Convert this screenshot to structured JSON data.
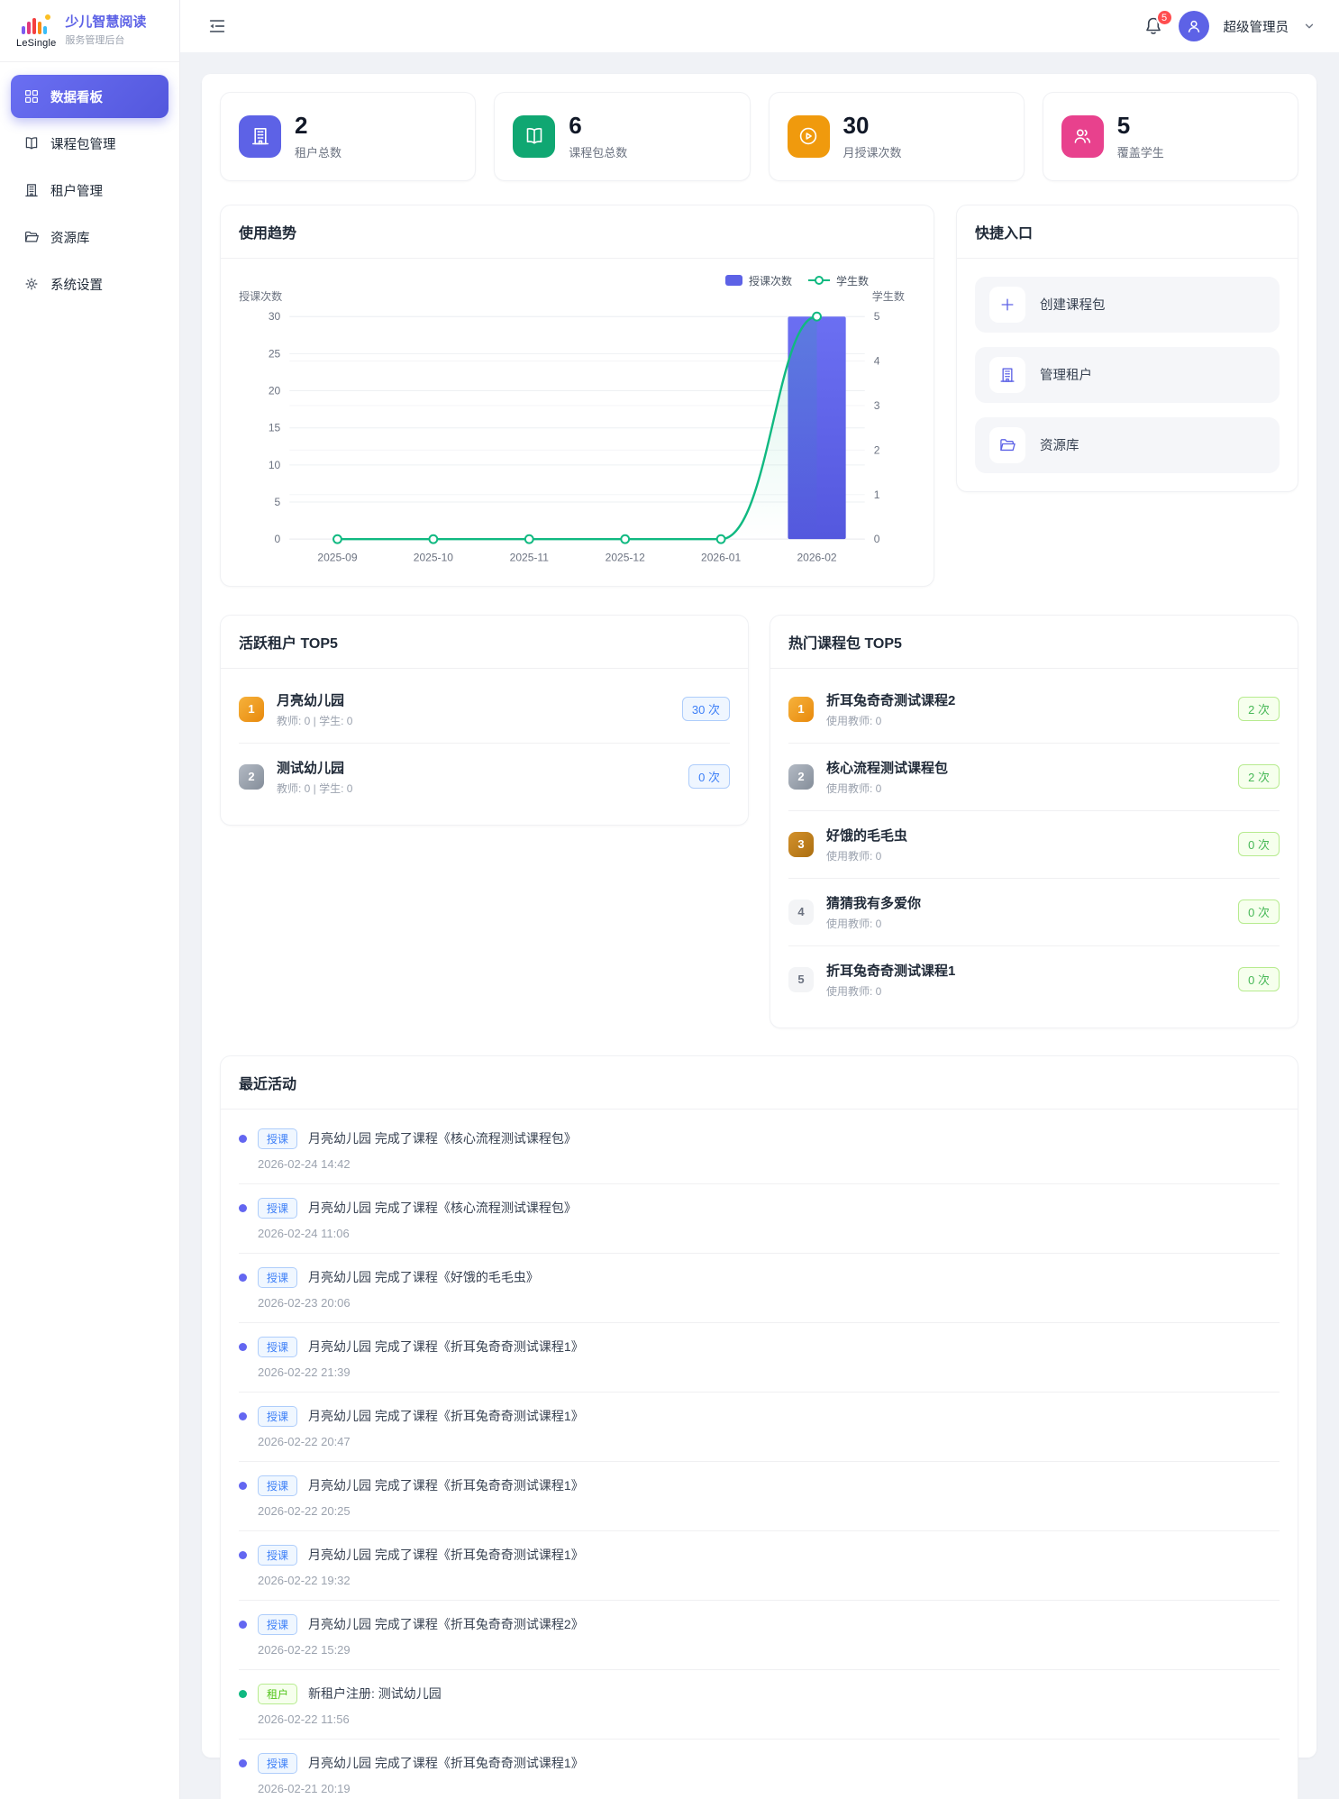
{
  "brand": {
    "logo_text": "LeSingle",
    "title": "少儿智慧阅读",
    "subtitle": "服务管理后台"
  },
  "sidebar": {
    "items": [
      {
        "id": "dashboard",
        "label": "数据看板",
        "icon": "grid-icon",
        "active": true
      },
      {
        "id": "packages",
        "label": "课程包管理",
        "icon": "book-icon",
        "active": false
      },
      {
        "id": "tenants",
        "label": "租户管理",
        "icon": "building-icon",
        "active": false
      },
      {
        "id": "resources",
        "label": "资源库",
        "icon": "folder-icon",
        "active": false
      },
      {
        "id": "settings",
        "label": "系统设置",
        "icon": "gear-icon",
        "active": false
      }
    ]
  },
  "topbar": {
    "notification_count": "5",
    "user_name": "超级管理员"
  },
  "stats": [
    {
      "value": "2",
      "label": "租户总数",
      "icon": "building-icon",
      "color": "#5d62e6"
    },
    {
      "value": "6",
      "label": "课程包总数",
      "icon": "book-icon",
      "color": "#10a772"
    },
    {
      "value": "30",
      "label": "月授课次数",
      "icon": "play-circle-icon",
      "color": "#f09a0d"
    },
    {
      "value": "5",
      "label": "覆盖学生",
      "icon": "users-icon",
      "color": "#e8418d"
    }
  ],
  "usage_trend": {
    "title": "使用趋势"
  },
  "chart_data": {
    "type": "bar",
    "title": "使用趋势",
    "categories": [
      "2025-09",
      "2025-10",
      "2025-11",
      "2025-12",
      "2026-01",
      "2026-02"
    ],
    "series": [
      {
        "name": "授课次数",
        "type": "bar",
        "axis": "left",
        "color": "#5d62e6",
        "values": [
          0,
          0,
          0,
          0,
          0,
          30
        ]
      },
      {
        "name": "学生数",
        "type": "line",
        "axis": "right",
        "color": "#10b981",
        "values": [
          0,
          0,
          0,
          0,
          0,
          5
        ]
      }
    ],
    "left_axis": {
      "name": "授课次数",
      "min": 0,
      "max": 30,
      "step": 5
    },
    "right_axis": {
      "name": "学生数",
      "min": 0,
      "max": 5,
      "step": 1
    },
    "legend_position": "top-right",
    "grid": true
  },
  "quick_entry": {
    "title": "快捷入口",
    "items": [
      {
        "label": "创建课程包",
        "icon": "plus-icon"
      },
      {
        "label": "管理租户",
        "icon": "building-icon"
      },
      {
        "label": "资源库",
        "icon": "folder-icon"
      }
    ]
  },
  "active_tenants": {
    "title": "活跃租户 TOP5",
    "badge_style": "blue",
    "items": [
      {
        "rank": "1",
        "rank_style": "gold",
        "name": "月亮幼儿园",
        "meta": "教师: 0 | 学生: 0",
        "count": "30 次"
      },
      {
        "rank": "2",
        "rank_style": "silver",
        "name": "测试幼儿园",
        "meta": "教师: 0 | 学生: 0",
        "count": "0 次"
      }
    ]
  },
  "hot_packages": {
    "title": "热门课程包 TOP5",
    "badge_style": "green",
    "items": [
      {
        "rank": "1",
        "rank_style": "gold",
        "name": "折耳兔奇奇测试课程2",
        "meta": "使用教师: 0",
        "count": "2 次"
      },
      {
        "rank": "2",
        "rank_style": "silver",
        "name": "核心流程测试课程包",
        "meta": "使用教师: 0",
        "count": "2 次"
      },
      {
        "rank": "3",
        "rank_style": "bronze",
        "name": "好饿的毛毛虫",
        "meta": "使用教师: 0",
        "count": "0 次"
      },
      {
        "rank": "4",
        "rank_style": "plain",
        "name": "猜猜我有多爱你",
        "meta": "使用教师: 0",
        "count": "0 次"
      },
      {
        "rank": "5",
        "rank_style": "plain",
        "name": "折耳兔奇奇测试课程1",
        "meta": "使用教师: 0",
        "count": "0 次"
      }
    ]
  },
  "recent_activity": {
    "title": "最近活动",
    "items": [
      {
        "type": "course",
        "tag": "授课",
        "text": "月亮幼儿园 完成了课程《核心流程测试课程包》",
        "time": "2026-02-24 14:42"
      },
      {
        "type": "course",
        "tag": "授课",
        "text": "月亮幼儿园 完成了课程《核心流程测试课程包》",
        "time": "2026-02-24 11:06"
      },
      {
        "type": "course",
        "tag": "授课",
        "text": "月亮幼儿园 完成了课程《好饿的毛毛虫》",
        "time": "2026-02-23 20:06"
      },
      {
        "type": "course",
        "tag": "授课",
        "text": "月亮幼儿园 完成了课程《折耳兔奇奇测试课程1》",
        "time": "2026-02-22 21:39"
      },
      {
        "type": "course",
        "tag": "授课",
        "text": "月亮幼儿园 完成了课程《折耳兔奇奇测试课程1》",
        "time": "2026-02-22 20:47"
      },
      {
        "type": "course",
        "tag": "授课",
        "text": "月亮幼儿园 完成了课程《折耳兔奇奇测试课程1》",
        "time": "2026-02-22 20:25"
      },
      {
        "type": "course",
        "tag": "授课",
        "text": "月亮幼儿园 完成了课程《折耳兔奇奇测试课程1》",
        "time": "2026-02-22 19:32"
      },
      {
        "type": "course",
        "tag": "授课",
        "text": "月亮幼儿园 完成了课程《折耳兔奇奇测试课程2》",
        "time": "2026-02-22 15:29"
      },
      {
        "type": "tenant",
        "tag": "租户",
        "text": "新租户注册: 测试幼儿园",
        "time": "2026-02-22 11:56"
      },
      {
        "type": "course",
        "tag": "授课",
        "text": "月亮幼儿园 完成了课程《折耳兔奇奇测试课程1》",
        "time": "2026-02-21 20:19"
      }
    ]
  },
  "colors": {
    "primary": "#5d62e6",
    "success": "#10b981",
    "warning": "#f09a0d",
    "pink": "#e8418d",
    "danger": "#ff4d4f",
    "tag_blue": "#3d7ff7",
    "tag_green": "#52c41a",
    "rank_gold": "#ef9a13",
    "rank_silver": "#9aa3ae",
    "rank_bronze": "#bf7d1a"
  }
}
